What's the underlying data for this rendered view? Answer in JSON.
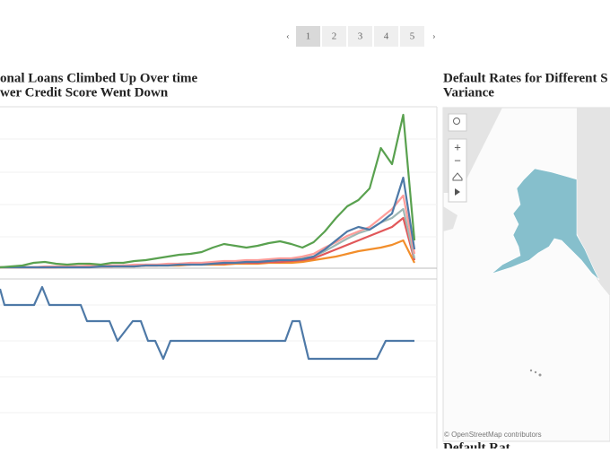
{
  "pagination": {
    "pages": [
      "1",
      "2",
      "3",
      "4",
      "5"
    ],
    "current": "1"
  },
  "chart_data": [
    {
      "type": "line",
      "title": [
        "onal Loans Climbed Up Over time",
        "wer Credit Score Went Down"
      ],
      "ylim": [
        0,
        180
      ],
      "series": [
        {
          "color": "#59a14f",
          "values": [
            0,
            1,
            2,
            5,
            6,
            4,
            3,
            4,
            4,
            3,
            5,
            5,
            7,
            8,
            10,
            12,
            14,
            15,
            17,
            22,
            26,
            24,
            22,
            24,
            27,
            29,
            26,
            22,
            28,
            40,
            55,
            68,
            75,
            88,
            133,
            115,
            170,
            30
          ]
        },
        {
          "color": "#4e79a7",
          "values": [
            0,
            0,
            0,
            0,
            0,
            0,
            0,
            0,
            0,
            1,
            1,
            1,
            1,
            2,
            2,
            2,
            3,
            3,
            3,
            4,
            5,
            5,
            6,
            6,
            7,
            8,
            8,
            9,
            12,
            20,
            30,
            40,
            45,
            42,
            50,
            60,
            100,
            20
          ]
        },
        {
          "color": "#ff9d9a",
          "values": [
            0,
            0,
            0,
            0,
            1,
            1,
            1,
            1,
            2,
            2,
            2,
            2,
            3,
            3,
            3,
            4,
            4,
            5,
            5,
            6,
            7,
            7,
            8,
            8,
            9,
            10,
            10,
            12,
            15,
            22,
            28,
            35,
            40,
            45,
            55,
            65,
            80,
            15
          ]
        },
        {
          "color": "#9fb8b5",
          "values": [
            0,
            0,
            0,
            0,
            0,
            1,
            1,
            1,
            1,
            1,
            2,
            2,
            2,
            3,
            3,
            3,
            4,
            4,
            4,
            5,
            5,
            6,
            6,
            7,
            7,
            8,
            9,
            10,
            12,
            18,
            25,
            32,
            38,
            42,
            50,
            55,
            65,
            10
          ]
        },
        {
          "color": "#e15759",
          "values": [
            0,
            0,
            0,
            0,
            0,
            0,
            1,
            1,
            1,
            1,
            1,
            2,
            2,
            2,
            2,
            3,
            3,
            3,
            4,
            4,
            4,
            5,
            5,
            5,
            6,
            6,
            7,
            8,
            10,
            15,
            20,
            25,
            30,
            35,
            40,
            45,
            55,
            8
          ]
        },
        {
          "color": "#f28e2b",
          "values": [
            0,
            0,
            0,
            0,
            0,
            0,
            0,
            1,
            1,
            1,
            1,
            1,
            1,
            2,
            2,
            2,
            2,
            3,
            3,
            3,
            3,
            4,
            4,
            4,
            5,
            5,
            5,
            6,
            8,
            10,
            12,
            15,
            18,
            20,
            22,
            25,
            30,
            5
          ]
        }
      ]
    },
    {
      "type": "line",
      "xlim": [
        0,
        46.2
      ],
      "ylim": [
        0,
        80
      ],
      "series": [
        {
          "color": "#4e79a7",
          "x": [
            0,
            0.5,
            3.8,
            4.7,
            5.5,
            9,
            9.7,
            12.2,
            13.1,
            14.8,
            15.7,
            16.5,
            17.3,
            18.2,
            19,
            31.8,
            32.6,
            33.4,
            34.4,
            42,
            43,
            46.2
          ],
          "values": [
            78,
            60,
            60,
            80,
            60,
            60,
            42,
            42,
            20,
            42,
            42,
            20,
            20,
            0,
            20,
            20,
            42,
            42,
            0,
            0,
            20,
            20
          ]
        }
      ]
    },
    {
      "type": "map",
      "title": [
        "Default Rates for Different S",
        "Variance"
      ],
      "attribution": "© OpenStreetMap contributors",
      "footer": "Default Rat"
    }
  ]
}
